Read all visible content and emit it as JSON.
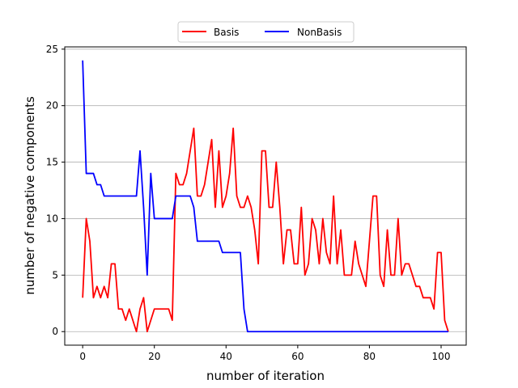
{
  "chart_data": {
    "type": "line",
    "xlabel": "number of iteration",
    "ylabel": "number of negative components",
    "xlim": [
      -5,
      107
    ],
    "ylim": [
      -1.2,
      25.2
    ],
    "xticks": [
      0,
      20,
      40,
      60,
      80,
      100
    ],
    "yticks": [
      0,
      5,
      10,
      15,
      20,
      25
    ],
    "grid": "horizontal",
    "legend_position": "top-center",
    "series": [
      {
        "name": "Basis",
        "color": "#ff0000",
        "x": [
          0,
          1,
          2,
          3,
          4,
          5,
          6,
          7,
          8,
          9,
          10,
          11,
          12,
          13,
          14,
          15,
          16,
          17,
          18,
          19,
          20,
          21,
          22,
          23,
          24,
          25,
          26,
          27,
          28,
          29,
          30,
          31,
          32,
          33,
          34,
          35,
          36,
          37,
          38,
          39,
          40,
          41,
          42,
          43,
          44,
          45,
          46,
          47,
          48,
          49,
          50,
          51,
          52,
          53,
          54,
          55,
          56,
          57,
          58,
          59,
          60,
          61,
          62,
          63,
          64,
          65,
          66,
          67,
          68,
          69,
          70,
          71,
          72,
          73,
          74,
          75,
          76,
          77,
          78,
          79,
          80,
          81,
          82,
          83,
          84,
          85,
          86,
          87,
          88,
          89,
          90,
          91,
          92,
          93,
          94,
          95,
          96,
          97,
          98,
          99,
          100,
          101,
          102
        ],
        "values": [
          3,
          10,
          8,
          3,
          4,
          3,
          4,
          3,
          6,
          6,
          2,
          2,
          1,
          2,
          1,
          0,
          2,
          3,
          0,
          1,
          2,
          2,
          2,
          2,
          2,
          1,
          14,
          13,
          13,
          14,
          16,
          18,
          12,
          12,
          13,
          15,
          17,
          11,
          16,
          11,
          12,
          14,
          18,
          12,
          11,
          11,
          12,
          11,
          9,
          6,
          16,
          16,
          11,
          11,
          15,
          11,
          6,
          9,
          9,
          6,
          6,
          11,
          5,
          6,
          10,
          9,
          6,
          10,
          7,
          6,
          12,
          6,
          9,
          5,
          5,
          5,
          8,
          6,
          5,
          4,
          8,
          12,
          12,
          5,
          4,
          9,
          5,
          5,
          10,
          5,
          6,
          6,
          5,
          4,
          4,
          3,
          3,
          3,
          2,
          7,
          7,
          1,
          0
        ]
      },
      {
        "name": "NonBasis",
        "color": "#0000ff",
        "x": [
          0,
          1,
          2,
          3,
          4,
          5,
          6,
          7,
          8,
          9,
          10,
          11,
          12,
          13,
          14,
          15,
          16,
          17,
          18,
          19,
          20,
          21,
          22,
          23,
          24,
          25,
          26,
          27,
          28,
          29,
          30,
          31,
          32,
          33,
          34,
          35,
          36,
          37,
          38,
          39,
          40,
          41,
          42,
          43,
          44,
          45,
          46,
          47,
          48,
          49,
          50,
          51,
          52,
          53,
          54,
          55,
          56,
          57,
          58,
          59,
          60,
          61,
          62,
          63,
          64,
          65,
          66,
          67,
          68,
          69,
          70,
          71,
          72,
          73,
          74,
          75,
          76,
          77,
          78,
          79,
          80,
          81,
          82,
          83,
          84,
          85,
          86,
          87,
          88,
          89,
          90,
          91,
          92,
          93,
          94,
          95,
          96,
          97,
          98,
          99,
          100,
          101,
          102
        ],
        "values": [
          24,
          14,
          14,
          14,
          13,
          13,
          12,
          12,
          12,
          12,
          12,
          12,
          12,
          12,
          12,
          12,
          16,
          11,
          5,
          14,
          10,
          10,
          10,
          10,
          10,
          10,
          12,
          12,
          12,
          12,
          12,
          11,
          8,
          8,
          8,
          8,
          8,
          8,
          8,
          7,
          7,
          7,
          7,
          7,
          7,
          2,
          0,
          0,
          0,
          0,
          0,
          0,
          0,
          0,
          0,
          0,
          0,
          0,
          0,
          0,
          0,
          0,
          0,
          0,
          0,
          0,
          0,
          0,
          0,
          0,
          0,
          0,
          0,
          0,
          0,
          0,
          0,
          0,
          0,
          0,
          0,
          0,
          0,
          0,
          0,
          0,
          0,
          0,
          0,
          0,
          0,
          0,
          0,
          0,
          0,
          0,
          0,
          0,
          0,
          0,
          0,
          0,
          0
        ]
      }
    ]
  }
}
